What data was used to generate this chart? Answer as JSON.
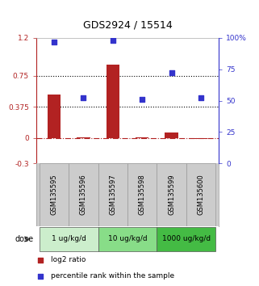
{
  "title": "GDS2924 / 15514",
  "samples": [
    "GSM135595",
    "GSM135596",
    "GSM135597",
    "GSM135598",
    "GSM135599",
    "GSM135600"
  ],
  "log2_ratio": [
    0.52,
    0.01,
    0.88,
    0.01,
    0.07,
    -0.01
  ],
  "percentile_rank": [
    97,
    52,
    98,
    51,
    72,
    52
  ],
  "ylim_left": [
    -0.3,
    1.2
  ],
  "ylim_right": [
    0,
    100
  ],
  "yticks_left": [
    -0.3,
    0,
    0.375,
    0.75,
    1.2
  ],
  "yticks_right": [
    0,
    25,
    50,
    75,
    100
  ],
  "ytick_labels_left": [
    "-0.3",
    "0",
    "0.375",
    "0.75",
    "1.2"
  ],
  "ytick_labels_right": [
    "0",
    "25",
    "50",
    "75",
    "100%"
  ],
  "hline_dotted": [
    0.375,
    0.75
  ],
  "bar_color": "#b22222",
  "scatter_color": "#3333cc",
  "zeroline_color": "#b22222",
  "doses": [
    {
      "label": "1 ug/kg/d",
      "samples": [
        0,
        1
      ],
      "color": "#cceecc"
    },
    {
      "label": "10 ug/kg/d",
      "samples": [
        2,
        3
      ],
      "color": "#88dd88"
    },
    {
      "label": "1000 ug/kg/d",
      "samples": [
        4,
        5
      ],
      "color": "#44bb44"
    }
  ],
  "legend_bar_label": "log2 ratio",
  "legend_scatter_label": "percentile rank within the sample",
  "dose_label": "dose",
  "sample_bg_color": "#cccccc",
  "sample_border_color": "#999999"
}
